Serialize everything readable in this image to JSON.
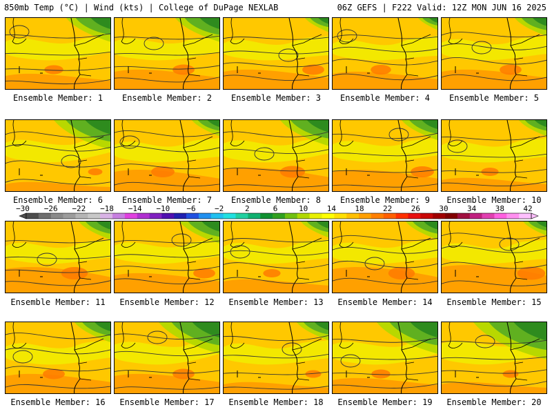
{
  "header": {
    "left": "850mb Temp (°C) | Wind (kts) | College of DuPage NEXLAB",
    "right": "06Z GEFS | F222 Valid: 12Z MON JUN 16 2025"
  },
  "member_prefix": "Ensemble Member:",
  "members": [
    {
      "label": "Ensemble Member: 1",
      "number": 1,
      "green_level": 0.55,
      "warm_level": 0.35
    },
    {
      "label": "Ensemble Member: 2",
      "number": 2,
      "green_level": 0.55,
      "warm_level": 0.45
    },
    {
      "label": "Ensemble Member: 3",
      "number": 3,
      "green_level": 0.3,
      "warm_level": 0.45
    },
    {
      "label": "Ensemble Member: 4",
      "number": 4,
      "green_level": 0.25,
      "warm_level": 0.4
    },
    {
      "label": "Ensemble Member: 5",
      "number": 5,
      "green_level": 0.4,
      "warm_level": 0.45
    },
    {
      "label": "Ensemble Member: 6",
      "number": 6,
      "green_level": 0.7,
      "warm_level": 0.2
    },
    {
      "label": "Ensemble Member: 7",
      "number": 7,
      "green_level": 0.35,
      "warm_level": 0.5
    },
    {
      "label": "Ensemble Member: 8",
      "number": 8,
      "green_level": 0.6,
      "warm_level": 0.55
    },
    {
      "label": "Ensemble Member: 9",
      "number": 9,
      "green_level": 0.45,
      "warm_level": 0.5
    },
    {
      "label": "Ensemble Member: 10",
      "number": 10,
      "green_level": 0.35,
      "warm_level": 0.3
    },
    {
      "label": "Ensemble Member: 11",
      "number": 11,
      "green_level": 0.4,
      "warm_level": 0.6
    },
    {
      "label": "Ensemble Member: 12",
      "number": 12,
      "green_level": 0.5,
      "warm_level": 0.45
    },
    {
      "label": "Ensemble Member: 13",
      "number": 13,
      "green_level": 0.35,
      "warm_level": 0.3
    },
    {
      "label": "Ensemble Member: 14",
      "number": 14,
      "green_level": 0.4,
      "warm_level": 0.6
    },
    {
      "label": "Ensemble Member: 15",
      "number": 15,
      "green_level": 0.3,
      "warm_level": 0.65
    },
    {
      "label": "Ensemble Member: 16",
      "number": 16,
      "green_level": 0.45,
      "warm_level": 0.45
    },
    {
      "label": "Ensemble Member: 17",
      "number": 17,
      "green_level": 0.75,
      "warm_level": 0.45
    },
    {
      "label": "Ensemble Member: 18",
      "number": 18,
      "green_level": 0.4,
      "warm_level": 0.25
    },
    {
      "label": "Ensemble Member: 19",
      "number": 19,
      "green_level": 0.75,
      "warm_level": 0.35
    },
    {
      "label": "Ensemble Member: 20",
      "number": 20,
      "green_level": 0.9,
      "warm_level": 0.25
    }
  ],
  "colorbar": {
    "unit": "°C",
    "tick_labels": [
      "−30",
      "−26",
      "−22",
      "−18",
      "−14",
      "−10",
      "−6",
      "−2",
      "2",
      "6",
      "10",
      "14",
      "18",
      "22",
      "26",
      "30",
      "34",
      "38",
      "42"
    ],
    "colors": [
      "#4d4d4d",
      "#6e6e6e",
      "#8a8a8a",
      "#9c9c9c",
      "#b5b5b5",
      "#c8c8c8",
      "#d9b3e6",
      "#c77fe0",
      "#e040e0",
      "#b030d0",
      "#8020c0",
      "#5010b0",
      "#2020b0",
      "#2050e0",
      "#2090f0",
      "#20c0f0",
      "#20e0e0",
      "#20d0a0",
      "#10b070",
      "#109030",
      "#30a020",
      "#70c010",
      "#b0d800",
      "#e8f000",
      "#ffff00",
      "#ffe000",
      "#ffc000",
      "#ffa000",
      "#ff8000",
      "#ff6000",
      "#ff3000",
      "#e81010",
      "#c80808",
      "#a00000",
      "#800000",
      "#a01040",
      "#c02080",
      "#e040b0",
      "#ff60e0",
      "#ff90f0",
      "#ffc0ff"
    ]
  },
  "palette": {
    "dark_green": "#2e8b1e",
    "green": "#60b020",
    "yellow_green": "#b8d800",
    "yellow": "#f0f000",
    "gold": "#ffc800",
    "orange": "#ffa000",
    "dark_orange": "#ff7a00"
  }
}
